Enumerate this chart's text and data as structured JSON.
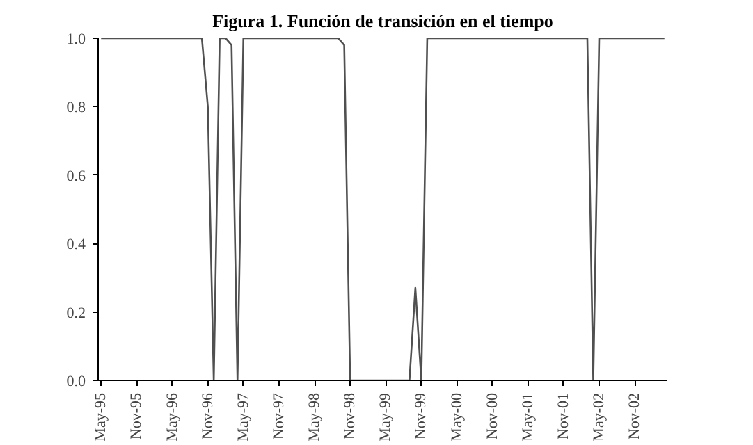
{
  "chart_data": {
    "type": "line",
    "title": "Figura 1. Función de transición en el tiempo",
    "categories": [
      "May-95",
      null,
      null,
      null,
      null,
      null,
      "Nov-95",
      null,
      null,
      null,
      null,
      null,
      "May-96",
      null,
      null,
      null,
      null,
      null,
      "Nov-96",
      null,
      null,
      null,
      null,
      null,
      "May-97",
      null,
      null,
      null,
      null,
      null,
      "Nov-97",
      null,
      null,
      null,
      null,
      null,
      "May-98",
      null,
      null,
      null,
      null,
      null,
      "Nov-98",
      null,
      null,
      null,
      null,
      null,
      "May-99",
      null,
      null,
      null,
      null,
      null,
      "Nov-99",
      null,
      null,
      null,
      null,
      null,
      "May-00",
      null,
      null,
      null,
      null,
      null,
      "Nov-00",
      null,
      null,
      null,
      null,
      null,
      "May-01",
      null,
      null,
      null,
      null,
      null,
      "Nov-01",
      null,
      null,
      null,
      null,
      null,
      "May-02",
      null,
      null,
      null,
      null,
      null,
      "Nov-02",
      null,
      null,
      null,
      null,
      null
    ],
    "series": [
      {
        "color": "#505050",
        "values": [
          1,
          1,
          1,
          1,
          1,
          1,
          1,
          1,
          1,
          1,
          1,
          1,
          1,
          1,
          1,
          1,
          1,
          1,
          0.8,
          0,
          1,
          1,
          0.98,
          0,
          1,
          1,
          1,
          1,
          1,
          1,
          1,
          1,
          1,
          1,
          1,
          1,
          1,
          1,
          1,
          1,
          1,
          0.98,
          0,
          0,
          0,
          0,
          0,
          0,
          0,
          0,
          0,
          0,
          0,
          0.27,
          0,
          1,
          1,
          1,
          1,
          1,
          1,
          1,
          1,
          1,
          1,
          1,
          1,
          1,
          1,
          1,
          1,
          1,
          1,
          1,
          1,
          1,
          1,
          1,
          1,
          1,
          1,
          1,
          1,
          0,
          1,
          1,
          1,
          1,
          1,
          1,
          1,
          1,
          1,
          1,
          1,
          1
        ]
      }
    ],
    "ylim": [
      0,
      1.0
    ],
    "yticks": [
      {
        "value": 0,
        "label": "0.0"
      },
      {
        "value": 0.2,
        "label": "0.2"
      },
      {
        "value": 0.4,
        "label": "0.4"
      },
      {
        "value": 0.6,
        "label": "0.6"
      },
      {
        "value": 0.8,
        "label": "0.8"
      },
      {
        "value": 1.0,
        "label": "1.0"
      }
    ],
    "grid": false,
    "marker": "none",
    "line_style": "solid"
  }
}
